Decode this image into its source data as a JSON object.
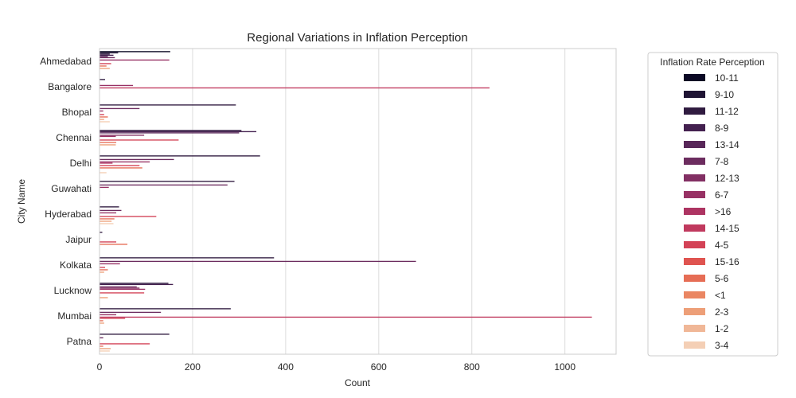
{
  "chart_data": {
    "type": "bar",
    "orientation": "horizontal",
    "title": "Regional Variations in Inflation Perception",
    "xlabel": "Count",
    "ylabel": "City Name",
    "xlim": [
      0,
      1110
    ],
    "xticks": [
      0,
      200,
      400,
      600,
      800,
      1000
    ],
    "xtick_labels": [
      "0",
      "200",
      "400",
      "600",
      "800",
      "1000"
    ],
    "grid": true,
    "legend": {
      "title": "Inflation Rate Perception",
      "placement": "outside-right"
    },
    "categories": [
      "Ahmedabad",
      "Bangalore",
      "Bhopal",
      "Chennai",
      "Delhi",
      "Guwahati",
      "Hyderabad",
      "Jaipur",
      "Kolkata",
      "Lucknow",
      "Mumbai",
      "Patna"
    ],
    "series": [
      {
        "name": "10-11",
        "color": "#0b0924",
        "values": [
          152,
          0,
          0,
          0,
          0,
          0,
          0,
          0,
          0,
          0,
          0,
          0
        ]
      },
      {
        "name": "9-10",
        "color": "#1f1434",
        "values": [
          40,
          0,
          0,
          0,
          0,
          0,
          0,
          0,
          0,
          0,
          0,
          0
        ]
      },
      {
        "name": "11-12",
        "color": "#301b40",
        "values": [
          22,
          12,
          293,
          305,
          345,
          290,
          42,
          6,
          375,
          148,
          282,
          150
        ]
      },
      {
        "name": "8-9",
        "color": "#43204f",
        "values": [
          30,
          0,
          0,
          337,
          0,
          0,
          0,
          0,
          0,
          158,
          0,
          0
        ]
      },
      {
        "name": "13-14",
        "color": "#582759",
        "values": [
          18,
          0,
          0,
          300,
          0,
          0,
          0,
          0,
          0,
          0,
          0,
          0
        ]
      },
      {
        "name": "7-8",
        "color": "#6c2c5f",
        "values": [
          33,
          0,
          86,
          0,
          160,
          275,
          47,
          0,
          680,
          80,
          132,
          8
        ]
      },
      {
        "name": "12-13",
        "color": "#822f63",
        "values": [
          0,
          0,
          0,
          96,
          0,
          0,
          0,
          0,
          0,
          86,
          0,
          0
        ]
      },
      {
        "name": "6-7",
        "color": "#973164",
        "values": [
          150,
          72,
          8,
          35,
          108,
          20,
          36,
          0,
          44,
          98,
          36,
          0
        ]
      },
      {
        "name": ">16",
        "color": "#ad3462",
        "values": [
          0,
          0,
          0,
          0,
          28,
          0,
          0,
          0,
          0,
          0,
          0,
          0
        ]
      },
      {
        "name": "14-15",
        "color": "#c0395e",
        "values": [
          0,
          838,
          0,
          0,
          0,
          0,
          0,
          0,
          0,
          0,
          1058,
          0
        ]
      },
      {
        "name": "4-5",
        "color": "#d34256",
        "values": [
          25,
          0,
          10,
          170,
          86,
          0,
          122,
          36,
          12,
          96,
          55,
          108
        ]
      },
      {
        "name": "15-16",
        "color": "#df5450",
        "values": [
          0,
          0,
          0,
          0,
          0,
          0,
          0,
          0,
          0,
          0,
          0,
          0
        ]
      },
      {
        "name": "5-6",
        "color": "#e66d55",
        "values": [
          15,
          0,
          18,
          36,
          92,
          0,
          32,
          60,
          18,
          0,
          8,
          8
        ]
      },
      {
        "name": "<1",
        "color": "#ea8662",
        "values": [
          0,
          0,
          0,
          0,
          0,
          0,
          0,
          0,
          0,
          0,
          0,
          0
        ]
      },
      {
        "name": "2-3",
        "color": "#ed9f78",
        "values": [
          22,
          0,
          10,
          35,
          0,
          0,
          26,
          0,
          10,
          18,
          10,
          24
        ]
      },
      {
        "name": "1-2",
        "color": "#f0b797",
        "values": [
          0,
          0,
          0,
          0,
          0,
          0,
          0,
          0,
          0,
          0,
          0,
          0
        ]
      },
      {
        "name": "3-4",
        "color": "#f4cfb5",
        "values": [
          0,
          0,
          22,
          0,
          15,
          0,
          30,
          0,
          0,
          0,
          0,
          22
        ]
      }
    ]
  }
}
